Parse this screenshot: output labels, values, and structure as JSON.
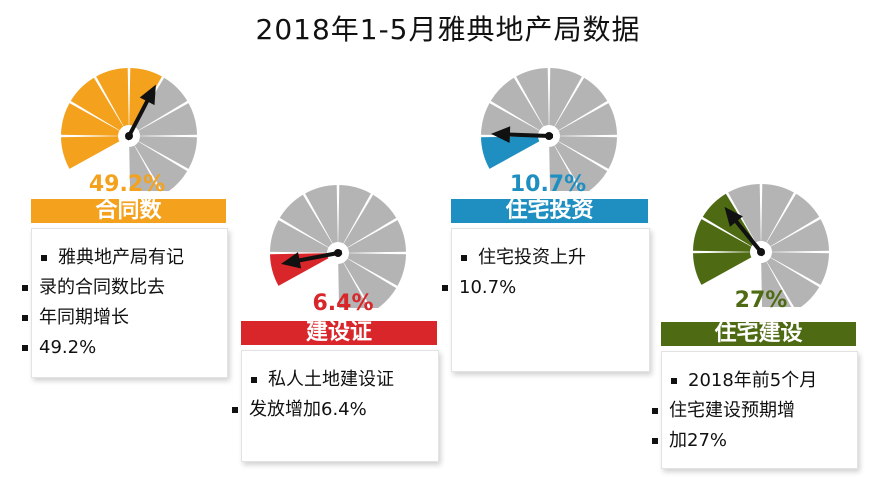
{
  "title": "2018年1-5月雅典地产局数据",
  "colors": {
    "gray": "#b4b4b4",
    "orange": "#f4a11d",
    "red": "#d9262b",
    "blue": "#1e8fc0",
    "green": "#4e6b14"
  },
  "chart_data": [
    {
      "type": "gauge",
      "label": "合同数",
      "value": 49.2,
      "value_label": "49.2%",
      "range": [
        0,
        100
      ],
      "note": "雅典地产局有记录的合同数比去年同期增长49.2%",
      "color": "#f4a11d"
    },
    {
      "type": "gauge",
      "label": "建设证",
      "value": 6.4,
      "value_label": "6.4%",
      "range": [
        0,
        100
      ],
      "note": "私人土地建设证发放增加6.4%",
      "color": "#d9262b"
    },
    {
      "type": "gauge",
      "label": "住宅投资",
      "value": 10.7,
      "value_label": "10.7%",
      "range": [
        0,
        100
      ],
      "note": "住宅投资上升10.7%",
      "color": "#1e8fc0"
    },
    {
      "type": "gauge",
      "label": "住宅建设",
      "value": 27,
      "value_label": "27%",
      "range": [
        0,
        100
      ],
      "note": "2018年前5个月住宅建设预期增加27%",
      "color": "#4e6b14"
    }
  ],
  "cards": [
    {
      "lines": [
        "雅典地产局有记",
        "录的合同数比去",
        "年同期增长",
        "49.2%"
      ]
    },
    {
      "lines": [
        "私人土地建设证",
        "发放增加6.4%"
      ]
    },
    {
      "lines": [
        "住宅投资上升",
        "10.7%"
      ]
    },
    {
      "lines": [
        "2018年前5个月",
        "住宅建设预期增",
        "加27%"
      ]
    }
  ]
}
